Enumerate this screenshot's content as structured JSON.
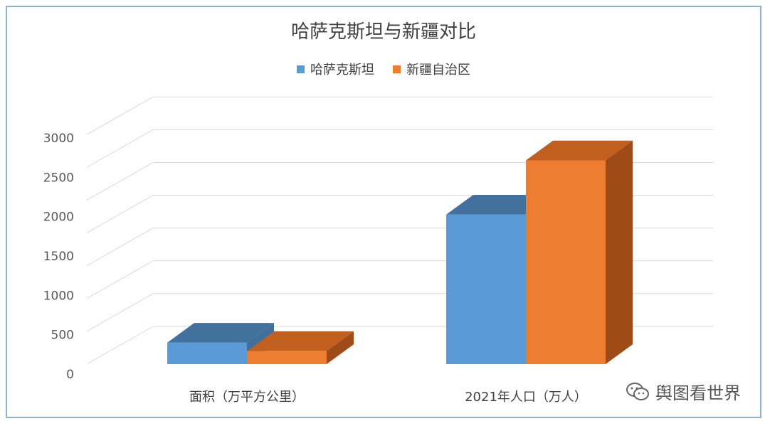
{
  "chart_data": {
    "type": "bar",
    "title": "哈萨克斯坦与新疆对比",
    "categories": [
      "面积（万平方公里）",
      "2021年人口（万人）"
    ],
    "series": [
      {
        "name": "哈萨克斯坦",
        "values": [
          272,
          1900
        ],
        "color": "#5b9bd5",
        "top_color": "#41719c",
        "side_color": "#3f6f9a"
      },
      {
        "name": "新疆自治区",
        "values": [
          166,
          2589
        ],
        "color": "#ed7d31",
        "top_color": "#c05f1e",
        "side_color": "#9e4b17"
      }
    ],
    "ylim": [
      0,
      3000
    ],
    "yticks": [
      "0",
      "500",
      "1000",
      "1500",
      "2000",
      "2500",
      "3000"
    ],
    "grid": true,
    "legend_position": "top",
    "xlabel": "",
    "ylabel": ""
  },
  "watermark": {
    "text": "舆图看世界",
    "icon": "wechat-icon"
  }
}
